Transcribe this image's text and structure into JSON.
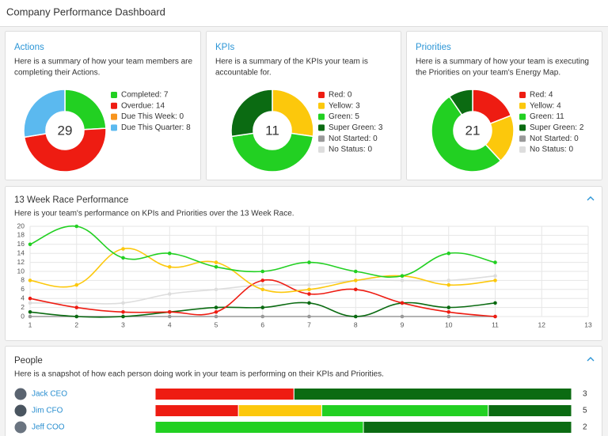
{
  "header": {
    "title": "Company Performance Dashboard"
  },
  "panels": [
    {
      "title": "Actions",
      "description": [
        "Here is a summary of how your team members are",
        "completing their Actions."
      ],
      "chart_data": {
        "type": "donut",
        "total": 29,
        "items": [
          {
            "label": "Completed: 7",
            "value": 7,
            "color": "#22d022"
          },
          {
            "label": "Overdue: 14",
            "value": 14,
            "color": "#ee1c12"
          },
          {
            "label": "Due This Week: 0",
            "value": 0,
            "color": "#f7941d"
          },
          {
            "label": "Due This Quarter: 8",
            "value": 8,
            "color": "#5bb9ef"
          }
        ]
      }
    },
    {
      "title": "KPIs",
      "description": [
        "Here is a summary of the KPIs your team is",
        "accountable for."
      ],
      "chart_data": {
        "type": "donut",
        "total": 11,
        "items": [
          {
            "label": "Red: 0",
            "value": 0,
            "color": "#ee1c12"
          },
          {
            "label": "Yellow: 3",
            "value": 3,
            "color": "#fcc80c"
          },
          {
            "label": "Green: 5",
            "value": 5,
            "color": "#22d022"
          },
          {
            "label": "Super Green: 3",
            "value": 3,
            "color": "#0b6b12"
          },
          {
            "label": "Not Started: 0",
            "value": 0,
            "color": "#999999"
          },
          {
            "label": "No Status: 0",
            "value": 0,
            "color": "#dddddd"
          }
        ]
      }
    },
    {
      "title": "Priorities",
      "description": [
        "Here is a summary of how your team is executing",
        "the Priorities on your team's Energy Map."
      ],
      "chart_data": {
        "type": "donut",
        "total": 21,
        "items": [
          {
            "label": "Red: 4",
            "value": 4,
            "color": "#ee1c12"
          },
          {
            "label": "Yellow: 4",
            "value": 4,
            "color": "#fcc80c"
          },
          {
            "label": "Green: 11",
            "value": 11,
            "color": "#22d022"
          },
          {
            "label": "Super Green: 2",
            "value": 2,
            "color": "#0b6b12"
          },
          {
            "label": "Not Started: 0",
            "value": 0,
            "color": "#999999"
          },
          {
            "label": "No Status: 0",
            "value": 0,
            "color": "#dddddd"
          }
        ]
      }
    }
  ],
  "race": {
    "title": "13 Week Race Performance",
    "description": "Here is your team's performance on KPIs and Priorities over the 13 Week Race.",
    "chart_data": {
      "type": "line",
      "x": [
        1,
        2,
        3,
        4,
        5,
        6,
        7,
        8,
        9,
        10,
        11
      ],
      "xlim": [
        1,
        13
      ],
      "xticks": [
        1,
        2,
        3,
        4,
        5,
        6,
        7,
        8,
        9,
        10,
        11,
        12,
        13
      ],
      "ylim": [
        0,
        20
      ],
      "yticks": [
        0,
        2,
        4,
        6,
        8,
        10,
        12,
        14,
        16,
        18,
        20
      ],
      "grid": true,
      "series": [
        {
          "color": "#dddddd",
          "values": [
            3,
            3,
            3,
            5,
            6,
            7,
            7,
            8,
            8,
            8,
            9
          ]
        },
        {
          "color": "#999999",
          "values": [
            0,
            0,
            0,
            0,
            0,
            0,
            0,
            0,
            0,
            0,
            0
          ]
        },
        {
          "color": "#0b6b12",
          "values": [
            1,
            0,
            0,
            1,
            2,
            2,
            3,
            0,
            3,
            2,
            3
          ]
        },
        {
          "color": "#ee1c12",
          "values": [
            4,
            2,
            1,
            1,
            1,
            8,
            5,
            6,
            3,
            1,
            0
          ]
        },
        {
          "color": "#fcc80c",
          "values": [
            8,
            7,
            15,
            11,
            12,
            6,
            6,
            8,
            9,
            7,
            8
          ]
        },
        {
          "color": "#22d022",
          "values": [
            16,
            20,
            13,
            14,
            11,
            10,
            12,
            10,
            9,
            14,
            12
          ]
        }
      ]
    }
  },
  "people": {
    "title": "People",
    "description": "Here is a snapshot of how each person doing work in your team is performing on their KPIs and Priorities.",
    "rows": [
      {
        "name": "Jack CEO",
        "count": 3,
        "segments": [
          {
            "value": 1,
            "color": "#ee1c12"
          },
          {
            "value": 2,
            "color": "#0b6b12"
          }
        ]
      },
      {
        "name": "Jim CFO",
        "count": 5,
        "segments": [
          {
            "value": 1,
            "color": "#ee1c12"
          },
          {
            "value": 1,
            "color": "#fcc80c"
          },
          {
            "value": 2,
            "color": "#22d022"
          },
          {
            "value": 1,
            "color": "#0b6b12"
          }
        ]
      },
      {
        "name": "Jeff COO",
        "count": 2,
        "segments": [
          {
            "value": 1,
            "color": "#22d022"
          },
          {
            "value": 1,
            "color": "#0b6b12"
          }
        ]
      }
    ]
  }
}
